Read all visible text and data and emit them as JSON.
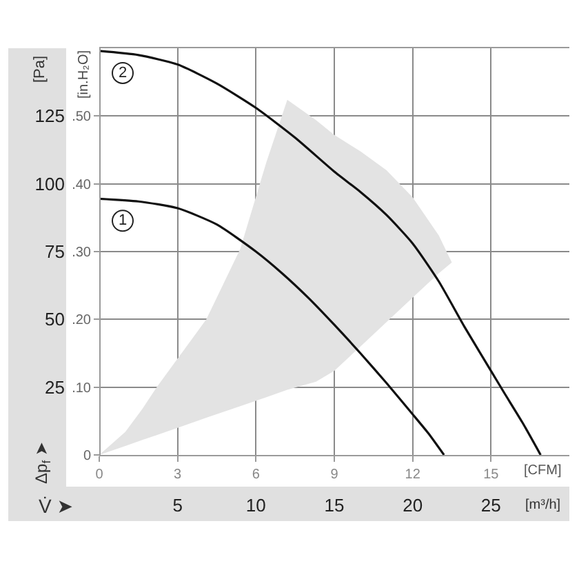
{
  "chart_data": {
    "type": "line",
    "xlabel": "[CFM]",
    "x2label": "[m³/h]",
    "ylabel": "[Pa]",
    "y2label": "[in.H₂O]",
    "annotations": [
      "Δp$_{f}$ ➤",
      "V̇ ➤"
    ],
    "xlim": [
      0,
      18
    ],
    "xticks": [
      0,
      3,
      6,
      9,
      12,
      15
    ],
    "x2lim": [
      0,
      30
    ],
    "x2ticks": [
      5,
      10,
      15,
      20,
      25
    ],
    "ylim": [
      0,
      150
    ],
    "yticks": [
      25,
      50,
      75,
      100,
      125
    ],
    "y2lim": [
      0,
      0.6
    ],
    "y2ticks": [
      0,
      {
        "value": 0.1,
        "label": ".10"
      },
      {
        "value": 0.2,
        "label": ".20"
      },
      {
        "value": 0.3,
        "label": ".30"
      },
      {
        "value": 0.4,
        "label": ".40"
      },
      {
        "value": 0.5,
        "label": ".50"
      }
    ],
    "grid": true,
    "legend": false,
    "series": [
      {
        "color": "#e3e3e3",
        "x": [
          0,
          1,
          1.65,
          2.2,
          3,
          4.1,
          5.4,
          6.4,
          7.2,
          8.3,
          9,
          10,
          11,
          12,
          13,
          13.5
        ],
        "values": [
          null,
          null,
          null,
          null,
          null,
          null,
          null,
          null,
          null,
          null,
          null,
          null,
          null,
          null,
          null,
          null
        ],
        "lower": [
          0,
          3.3,
          5.5,
          7.3,
          10,
          13.7,
          18,
          21.3,
          24,
          27,
          31,
          40,
          49,
          58,
          67,
          71
        ],
        "upper": [
          0,
          8.5,
          17,
          25,
          35.5,
          50,
          76,
          108,
          131,
          123.5,
          118,
          112,
          105,
          95,
          81,
          71
        ]
      },
      {
        "name": "1",
        "color": "#111111",
        "x": [
          0,
          1.5,
          3,
          4.5,
          6,
          7,
          8,
          9,
          10,
          11,
          12,
          12.6,
          13.2
        ],
        "values": [
          94.5,
          93.5,
          91,
          85,
          75,
          67,
          58,
          48,
          37.5,
          26.5,
          15,
          8,
          0
        ]
      },
      {
        "name": "2",
        "color": "#111111",
        "x": [
          0,
          1.5,
          3,
          4.5,
          6,
          7.5,
          9,
          10,
          11,
          12,
          13,
          14,
          15,
          15.5,
          16.2,
          16.9
        ],
        "values": [
          149,
          147.5,
          144,
          137,
          128,
          117,
          104.5,
          97,
          88.5,
          78,
          64,
          47,
          31,
          23,
          12,
          0
        ]
      }
    ]
  }
}
